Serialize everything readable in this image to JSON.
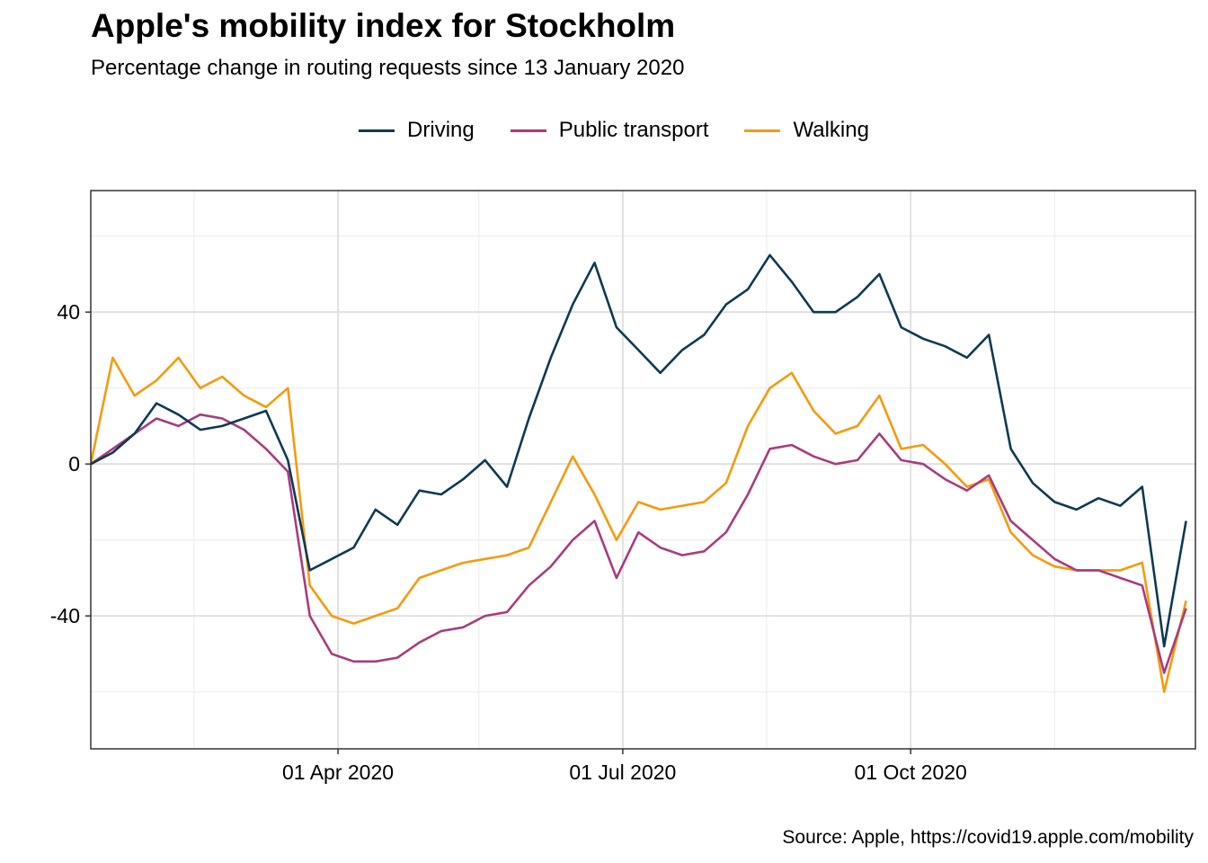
{
  "title": "Apple's mobility index for Stockholm",
  "subtitle": "Percentage change in routing requests since 13 January 2020",
  "caption": "Source: Apple, https://covid19.apple.com/mobility",
  "colors": {
    "Driving": "#0d3a52",
    "Public transport": "#a83c7e",
    "Walking": "#f59a0c"
  },
  "chart_data": {
    "type": "line",
    "title": "Apple's mobility index for Stockholm",
    "subtitle": "Percentage change in routing requests since 13 January 2020",
    "xlabel": "",
    "ylabel": "",
    "x_range": [
      "2020-01-13",
      "2020-12-31"
    ],
    "ylim": [
      -75,
      72
    ],
    "x_ticks": [
      {
        "date": "2020-04-01",
        "label": "01 Apr 2020"
      },
      {
        "date": "2020-07-01",
        "label": "01 Jul 2020"
      },
      {
        "date": "2020-10-01",
        "label": "01 Oct 2020"
      }
    ],
    "y_ticks": [
      {
        "value": -40,
        "label": "-40"
      },
      {
        "value": 0,
        "label": "0"
      },
      {
        "value": 40,
        "label": "40"
      }
    ],
    "grid": true,
    "legend_position": "top",
    "series": [
      {
        "name": "Driving",
        "points": [
          [
            "2020-01-13",
            0
          ],
          [
            "2020-01-20",
            3
          ],
          [
            "2020-01-27",
            8
          ],
          [
            "2020-02-03",
            16
          ],
          [
            "2020-02-10",
            13
          ],
          [
            "2020-02-17",
            9
          ],
          [
            "2020-02-24",
            10
          ],
          [
            "2020-03-02",
            12
          ],
          [
            "2020-03-09",
            14
          ],
          [
            "2020-03-16",
            1
          ],
          [
            "2020-03-23",
            -28
          ],
          [
            "2020-03-30",
            -25
          ],
          [
            "2020-04-06",
            -22
          ],
          [
            "2020-04-13",
            -12
          ],
          [
            "2020-04-20",
            -16
          ],
          [
            "2020-04-27",
            -7
          ],
          [
            "2020-05-04",
            -8
          ],
          [
            "2020-05-11",
            -4
          ],
          [
            "2020-05-18",
            1
          ],
          [
            "2020-05-25",
            -6
          ],
          [
            "2020-06-01",
            12
          ],
          [
            "2020-06-08",
            28
          ],
          [
            "2020-06-15",
            42
          ],
          [
            "2020-06-22",
            53
          ],
          [
            "2020-06-29",
            36
          ],
          [
            "2020-07-06",
            30
          ],
          [
            "2020-07-13",
            24
          ],
          [
            "2020-07-20",
            30
          ],
          [
            "2020-07-27",
            34
          ],
          [
            "2020-08-03",
            42
          ],
          [
            "2020-08-10",
            46
          ],
          [
            "2020-08-17",
            55
          ],
          [
            "2020-08-24",
            48
          ],
          [
            "2020-08-31",
            40
          ],
          [
            "2020-09-07",
            40
          ],
          [
            "2020-09-14",
            44
          ],
          [
            "2020-09-21",
            50
          ],
          [
            "2020-09-28",
            36
          ],
          [
            "2020-10-05",
            33
          ],
          [
            "2020-10-12",
            31
          ],
          [
            "2020-10-19",
            28
          ],
          [
            "2020-10-26",
            34
          ],
          [
            "2020-11-02",
            4
          ],
          [
            "2020-11-09",
            -5
          ],
          [
            "2020-11-16",
            -10
          ],
          [
            "2020-11-23",
            -12
          ],
          [
            "2020-11-30",
            -9
          ],
          [
            "2020-12-07",
            -11
          ],
          [
            "2020-12-14",
            -6
          ],
          [
            "2020-12-21",
            -48
          ],
          [
            "2020-12-28",
            -15
          ]
        ]
      },
      {
        "name": "Public transport",
        "points": [
          [
            "2020-01-13",
            0
          ],
          [
            "2020-01-20",
            4
          ],
          [
            "2020-01-27",
            8
          ],
          [
            "2020-02-03",
            12
          ],
          [
            "2020-02-10",
            10
          ],
          [
            "2020-02-17",
            13
          ],
          [
            "2020-02-24",
            12
          ],
          [
            "2020-03-02",
            9
          ],
          [
            "2020-03-09",
            4
          ],
          [
            "2020-03-16",
            -2
          ],
          [
            "2020-03-23",
            -40
          ],
          [
            "2020-03-30",
            -50
          ],
          [
            "2020-04-06",
            -52
          ],
          [
            "2020-04-13",
            -52
          ],
          [
            "2020-04-20",
            -51
          ],
          [
            "2020-04-27",
            -47
          ],
          [
            "2020-05-04",
            -44
          ],
          [
            "2020-05-11",
            -43
          ],
          [
            "2020-05-18",
            -40
          ],
          [
            "2020-05-25",
            -39
          ],
          [
            "2020-06-01",
            -32
          ],
          [
            "2020-06-08",
            -27
          ],
          [
            "2020-06-15",
            -20
          ],
          [
            "2020-06-22",
            -15
          ],
          [
            "2020-06-29",
            -30
          ],
          [
            "2020-07-06",
            -18
          ],
          [
            "2020-07-13",
            -22
          ],
          [
            "2020-07-20",
            -24
          ],
          [
            "2020-07-27",
            -23
          ],
          [
            "2020-08-03",
            -18
          ],
          [
            "2020-08-10",
            -8
          ],
          [
            "2020-08-17",
            4
          ],
          [
            "2020-08-24",
            5
          ],
          [
            "2020-08-31",
            2
          ],
          [
            "2020-09-07",
            0
          ],
          [
            "2020-09-14",
            1
          ],
          [
            "2020-09-21",
            8
          ],
          [
            "2020-09-28",
            1
          ],
          [
            "2020-10-05",
            0
          ],
          [
            "2020-10-12",
            -4
          ],
          [
            "2020-10-19",
            -7
          ],
          [
            "2020-10-26",
            -3
          ],
          [
            "2020-11-02",
            -15
          ],
          [
            "2020-11-09",
            -20
          ],
          [
            "2020-11-16",
            -25
          ],
          [
            "2020-11-23",
            -28
          ],
          [
            "2020-11-30",
            -28
          ],
          [
            "2020-12-07",
            -30
          ],
          [
            "2020-12-14",
            -32
          ],
          [
            "2020-12-21",
            -55
          ],
          [
            "2020-12-28",
            -38
          ]
        ]
      },
      {
        "name": "Walking",
        "points": [
          [
            "2020-01-13",
            0
          ],
          [
            "2020-01-20",
            28
          ],
          [
            "2020-01-27",
            18
          ],
          [
            "2020-02-03",
            22
          ],
          [
            "2020-02-10",
            28
          ],
          [
            "2020-02-17",
            20
          ],
          [
            "2020-02-24",
            23
          ],
          [
            "2020-03-02",
            18
          ],
          [
            "2020-03-09",
            15
          ],
          [
            "2020-03-16",
            20
          ],
          [
            "2020-03-23",
            -32
          ],
          [
            "2020-03-30",
            -40
          ],
          [
            "2020-04-06",
            -42
          ],
          [
            "2020-04-13",
            -40
          ],
          [
            "2020-04-20",
            -38
          ],
          [
            "2020-04-27",
            -30
          ],
          [
            "2020-05-04",
            -28
          ],
          [
            "2020-05-11",
            -26
          ],
          [
            "2020-05-18",
            -25
          ],
          [
            "2020-05-25",
            -24
          ],
          [
            "2020-06-01",
            -22
          ],
          [
            "2020-06-08",
            -10
          ],
          [
            "2020-06-15",
            2
          ],
          [
            "2020-06-22",
            -8
          ],
          [
            "2020-06-29",
            -20
          ],
          [
            "2020-07-06",
            -10
          ],
          [
            "2020-07-13",
            -12
          ],
          [
            "2020-07-20",
            -11
          ],
          [
            "2020-07-27",
            -10
          ],
          [
            "2020-08-03",
            -5
          ],
          [
            "2020-08-10",
            10
          ],
          [
            "2020-08-17",
            20
          ],
          [
            "2020-08-24",
            24
          ],
          [
            "2020-08-31",
            14
          ],
          [
            "2020-09-07",
            8
          ],
          [
            "2020-09-14",
            10
          ],
          [
            "2020-09-21",
            18
          ],
          [
            "2020-09-28",
            4
          ],
          [
            "2020-10-05",
            5
          ],
          [
            "2020-10-12",
            0
          ],
          [
            "2020-10-19",
            -6
          ],
          [
            "2020-10-26",
            -4
          ],
          [
            "2020-11-02",
            -18
          ],
          [
            "2020-11-09",
            -24
          ],
          [
            "2020-11-16",
            -27
          ],
          [
            "2020-11-23",
            -28
          ],
          [
            "2020-11-30",
            -28
          ],
          [
            "2020-12-07",
            -28
          ],
          [
            "2020-12-14",
            -26
          ],
          [
            "2020-12-21",
            -60
          ],
          [
            "2020-12-28",
            -36
          ]
        ]
      }
    ]
  }
}
